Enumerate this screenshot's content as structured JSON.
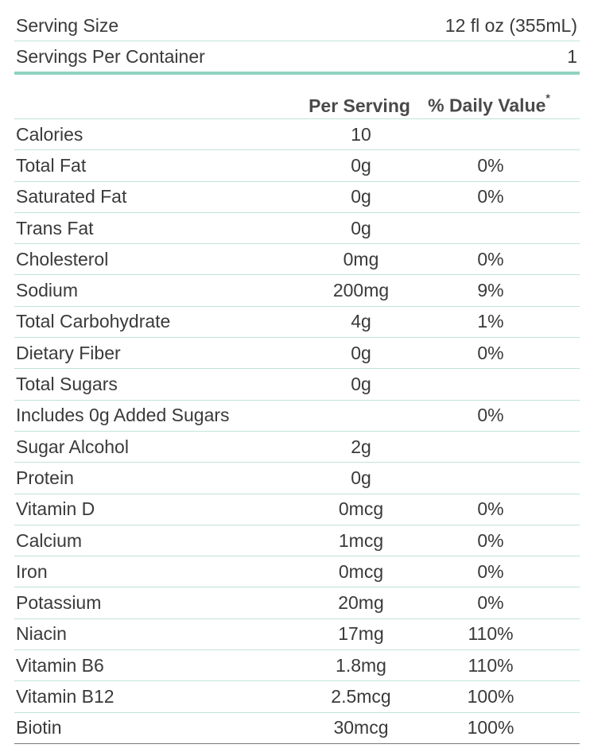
{
  "serving": {
    "size_label": "Serving Size",
    "size_value": "12 fl oz (355mL)",
    "per_container_label": "Servings Per Container",
    "per_container_value": "1"
  },
  "table": {
    "headers": {
      "per_serving": "Per Serving",
      "daily_value": "% Daily Value",
      "asterisk": "*"
    },
    "rows": [
      {
        "name": "Calories",
        "per_serving": "10",
        "daily_value": ""
      },
      {
        "name": "Total Fat",
        "per_serving": "0g",
        "daily_value": "0%"
      },
      {
        "name": "Saturated Fat",
        "per_serving": "0g",
        "daily_value": "0%"
      },
      {
        "name": "Trans Fat",
        "per_serving": "0g",
        "daily_value": ""
      },
      {
        "name": "Cholesterol",
        "per_serving": "0mg",
        "daily_value": "0%"
      },
      {
        "name": "Sodium",
        "per_serving": "200mg",
        "daily_value": "9%"
      },
      {
        "name": "Total Carbohydrate",
        "per_serving": "4g",
        "daily_value": "1%"
      },
      {
        "name": "Dietary Fiber",
        "per_serving": "0g",
        "daily_value": "0%"
      },
      {
        "name": "Total Sugars",
        "per_serving": "0g",
        "daily_value": ""
      },
      {
        "name": "Includes 0g Added Sugars",
        "per_serving": "",
        "daily_value": "0%"
      },
      {
        "name": "Sugar Alcohol",
        "per_serving": "2g",
        "daily_value": ""
      },
      {
        "name": "Protein",
        "per_serving": "0g",
        "daily_value": ""
      },
      {
        "name": "Vitamin D",
        "per_serving": "0mcg",
        "daily_value": "0%"
      },
      {
        "name": "Calcium",
        "per_serving": "1mcg",
        "daily_value": "0%"
      },
      {
        "name": "Iron",
        "per_serving": "0mcg",
        "daily_value": "0%"
      },
      {
        "name": "Potassium",
        "per_serving": "20mg",
        "daily_value": "0%"
      },
      {
        "name": "Niacin",
        "per_serving": "17mg",
        "daily_value": "110%"
      },
      {
        "name": "Vitamin B6",
        "per_serving": "1.8mg",
        "daily_value": "110%"
      },
      {
        "name": "Vitamin B12",
        "per_serving": "2.5mcg",
        "daily_value": "100%"
      },
      {
        "name": "Biotin",
        "per_serving": "30mcg",
        "daily_value": "100%"
      }
    ]
  },
  "colors": {
    "accent_line": "#8fd3c0",
    "row_divider": "#bfe3d8",
    "text": "#3a3a3a"
  }
}
